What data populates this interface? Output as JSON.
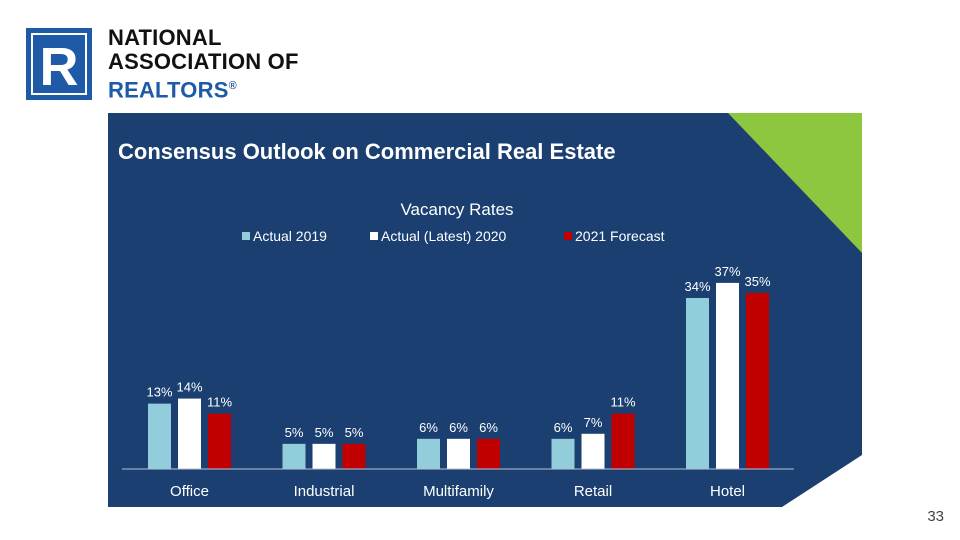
{
  "logo": {
    "line1": "NATIONAL",
    "line2": "ASSOCIATION OF",
    "line3": "REALTORS",
    "registered": "®",
    "mark_letter": "R",
    "brand_color": "#1f5aa6"
  },
  "slide": {
    "heading": "Consensus Outlook on Commercial Real Estate",
    "page_number": "33",
    "panel_color": "#1a3f70",
    "accent_color": "#8dc63f"
  },
  "chart_data": {
    "type": "bar",
    "title": "Vacancy Rates",
    "categories": [
      "Office",
      "Industrial",
      "Multifamily",
      "Retail",
      "Hotel"
    ],
    "series": [
      {
        "name": "Actual 2019",
        "color": "#92cddc",
        "values": [
          13,
          5,
          6,
          6,
          34
        ],
        "labels": [
          "13%",
          "5%",
          "6%",
          "6%",
          "34%"
        ]
      },
      {
        "name": "Actual (Latest) 2020",
        "color": "#ffffff",
        "values": [
          14,
          5,
          6,
          7,
          37
        ],
        "labels": [
          "14%",
          "5%",
          "6%",
          "7%",
          "37%"
        ]
      },
      {
        "name": "2021 Forecast",
        "color": "#c00000",
        "values": [
          11,
          5,
          6,
          11,
          35
        ],
        "labels": [
          "11%",
          "5%",
          "6%",
          "11%",
          "35%"
        ]
      }
    ],
    "unit": "%",
    "ylim": [
      0,
      40
    ],
    "grid": false,
    "legend_position": "top"
  }
}
